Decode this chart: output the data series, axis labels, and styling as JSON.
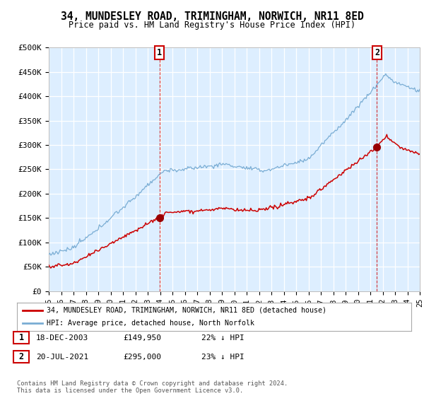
{
  "title": "34, MUNDESLEY ROAD, TRIMINGHAM, NORWICH, NR11 8ED",
  "subtitle": "Price paid vs. HM Land Registry's House Price Index (HPI)",
  "ylim": [
    0,
    500000
  ],
  "yticks": [
    0,
    50000,
    100000,
    150000,
    200000,
    250000,
    300000,
    350000,
    400000,
    450000,
    500000
  ],
  "ytick_labels": [
    "£0",
    "£50K",
    "£100K",
    "£150K",
    "£200K",
    "£250K",
    "£300K",
    "£350K",
    "£400K",
    "£450K",
    "£500K"
  ],
  "xlim": [
    1995,
    2025
  ],
  "legend_line1": "34, MUNDESLEY ROAD, TRIMINGHAM, NORWICH, NR11 8ED (detached house)",
  "legend_line2": "HPI: Average price, detached house, North Norfolk",
  "annotation1_date": "18-DEC-2003",
  "annotation1_price": "£149,950",
  "annotation1_hpi": "22% ↓ HPI",
  "annotation2_date": "20-JUL-2021",
  "annotation2_price": "£295,000",
  "annotation2_hpi": "23% ↓ HPI",
  "footnote": "Contains HM Land Registry data © Crown copyright and database right 2024.\nThis data is licensed under the Open Government Licence v3.0.",
  "line1_color": "#cc0000",
  "line2_color": "#7aadd4",
  "marker_color": "#990000",
  "vline_color": "#cc0000",
  "box_color": "#cc0000",
  "bg_color": "#ffffff",
  "plot_bg_color": "#ddeeff",
  "grid_color": "#ffffff",
  "sale1_year": 2003.96,
  "sale1_price": 149950,
  "sale2_year": 2021.54,
  "sale2_price": 295000
}
